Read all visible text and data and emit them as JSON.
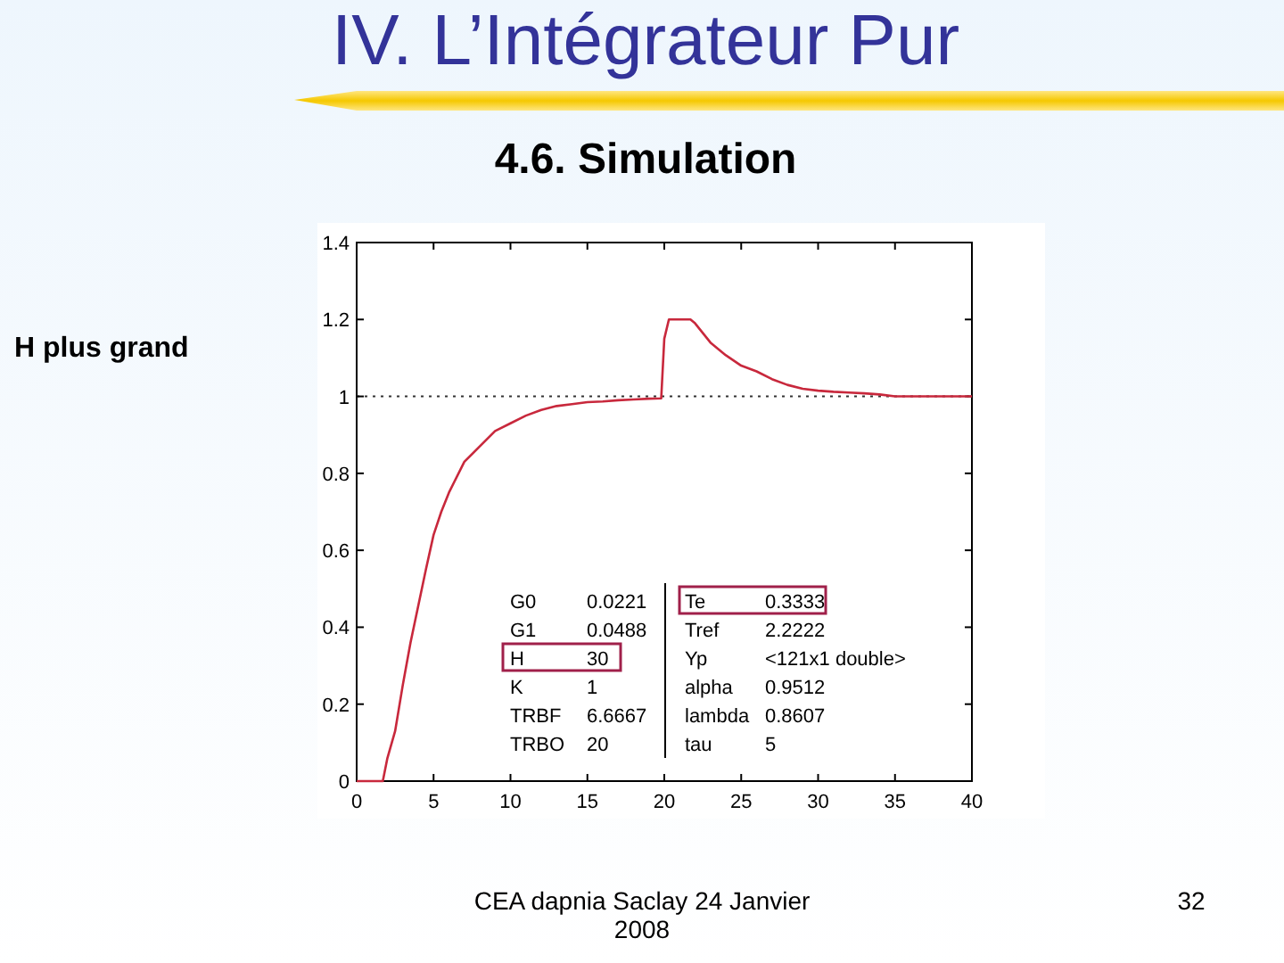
{
  "chart_data": {
    "type": "line",
    "title": "IV. L’Intégrateur Pur",
    "subtitle": "4.6. Simulation",
    "x": [
      0,
      1.7,
      2,
      2.5,
      3,
      3.5,
      4,
      4.5,
      5,
      5.5,
      6,
      7,
      8,
      9,
      10,
      11,
      12,
      13,
      14,
      15,
      16,
      17,
      18,
      19,
      19.8,
      20,
      20.3,
      21,
      21.7,
      22,
      23,
      24,
      25,
      26,
      27,
      28,
      29,
      30,
      31,
      32,
      33,
      34,
      35,
      37,
      40
    ],
    "series": [
      {
        "color": "#c8283c",
        "values": [
          0,
          0,
          0.06,
          0.13,
          0.25,
          0.36,
          0.455,
          0.55,
          0.64,
          0.7,
          0.75,
          0.83,
          0.87,
          0.91,
          0.93,
          0.95,
          0.965,
          0.975,
          0.98,
          0.985,
          0.987,
          0.99,
          0.992,
          0.994,
          0.995,
          1.15,
          1.2,
          1.2,
          1.2,
          1.19,
          1.14,
          1.107,
          1.08,
          1.065,
          1.045,
          1.03,
          1.02,
          1.015,
          1.012,
          1.01,
          1.008,
          1.005,
          1.0,
          1.0,
          1.0
        ]
      }
    ],
    "xlim": [
      0,
      40
    ],
    "ylim": [
      0,
      1.4
    ],
    "xticks": [
      0,
      5,
      10,
      15,
      20,
      25,
      30,
      35,
      40
    ],
    "yticks": [
      0,
      0.2,
      0.4,
      0.6,
      0.8,
      1,
      1.2,
      1.4
    ],
    "marker": "none",
    "line_style": "solid",
    "ref_lines": [
      {
        "axis": "y",
        "value": 1,
        "line_style": "dotted",
        "color": "#333333"
      }
    ],
    "annotations": [
      "H plus grand",
      "CEA dapnia Saclay 24 Janvier 2008",
      "32",
      "G0",
      "0.0221",
      "G1",
      "0.0488",
      "H",
      "30",
      "K",
      "1",
      "TRBF",
      "6.6667",
      "TRBO",
      "20",
      "Te",
      "0.3333",
      "Tref",
      "2.2222",
      "Yp",
      "<121x1 double>",
      "alpha",
      "0.9512",
      "lambda",
      "0.8607",
      "tau",
      "5"
    ]
  }
}
